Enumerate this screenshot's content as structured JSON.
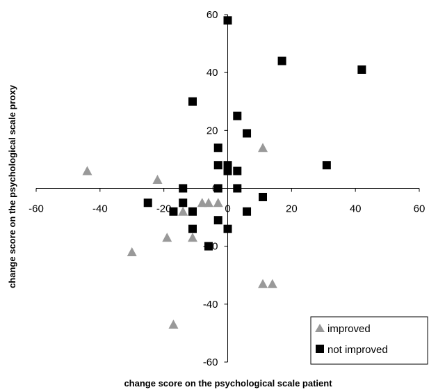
{
  "chart_data": {
    "type": "scatter",
    "title": "",
    "xlabel": "change score on the psychological scale patient",
    "ylabel": "change score on the psychological scale proxy",
    "xlim": [
      -60,
      60
    ],
    "ylim": [
      -60,
      60
    ],
    "x_ticks": [
      "-60",
      "-40",
      "-20",
      "0",
      "20",
      "40",
      "60"
    ],
    "y_ticks": [
      "60",
      "40",
      "20",
      "0",
      "-20",
      "-40",
      "-60"
    ],
    "grid": false,
    "legend_position": "bottom-right",
    "series": [
      {
        "name": "improved",
        "marker": "triangle",
        "color": "#999999",
        "points": [
          [
            -44,
            6
          ],
          [
            -22,
            3
          ],
          [
            -30,
            -22
          ],
          [
            -19,
            -17
          ],
          [
            -14,
            -8
          ],
          [
            -11,
            -17
          ],
          [
            -17,
            -47
          ],
          [
            -8,
            -5
          ],
          [
            -6,
            -5
          ],
          [
            -3,
            -5
          ],
          [
            11,
            14
          ],
          [
            11,
            -33
          ],
          [
            14,
            -33
          ]
        ]
      },
      {
        "name": "not improved",
        "marker": "square",
        "color": "#000000",
        "points": [
          [
            0,
            58
          ],
          [
            17,
            44
          ],
          [
            42,
            41
          ],
          [
            -11,
            30
          ],
          [
            3,
            25
          ],
          [
            6,
            19
          ],
          [
            31,
            8
          ],
          [
            -3,
            14
          ],
          [
            -3,
            8
          ],
          [
            0,
            8
          ],
          [
            0,
            6
          ],
          [
            3,
            6
          ],
          [
            -14,
            0
          ],
          [
            -3,
            0
          ],
          [
            3,
            0
          ],
          [
            11,
            -3
          ],
          [
            -25,
            -5
          ],
          [
            -14,
            -5
          ],
          [
            -17,
            -8
          ],
          [
            -11,
            -8
          ],
          [
            6,
            -8
          ],
          [
            -3,
            -11
          ],
          [
            -11,
            -14
          ],
          [
            0,
            -14
          ],
          [
            -6,
            -20
          ]
        ]
      }
    ]
  }
}
